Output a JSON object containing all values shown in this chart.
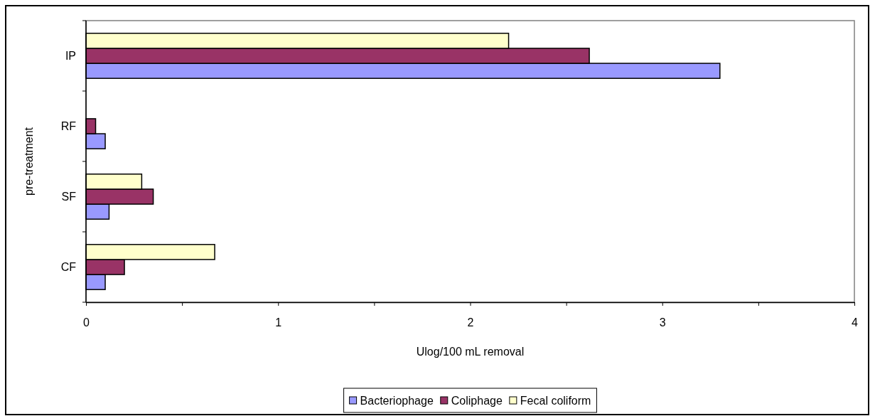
{
  "chart_data": {
    "type": "bar",
    "orientation": "horizontal",
    "categories": [
      "IP",
      "RF",
      "SF",
      "CF"
    ],
    "series": [
      {
        "name": "Bacteriophage",
        "color": "#9999ff",
        "values": [
          3.3,
          0.1,
          0.12,
          0.1
        ]
      },
      {
        "name": "Coliphage",
        "color": "#993366",
        "values": [
          2.62,
          0.05,
          0.35,
          0.2
        ]
      },
      {
        "name": "Fecal coliform",
        "color": "#ffffcc",
        "values": [
          2.2,
          null,
          0.29,
          0.67
        ]
      }
    ],
    "xlabel": "Ulog/100 mL removal",
    "ylabel": "pre-treatment",
    "xlim": [
      0,
      4
    ],
    "xticks": [
      0,
      {
        "value": 0.5,
        "label": null
      },
      1,
      {
        "value": 1.5,
        "label": null
      },
      2,
      {
        "value": 2.5,
        "label": null
      },
      3,
      {
        "value": 3.5,
        "label": null
      },
      4
    ],
    "legend": "bottom",
    "grid": false
  }
}
